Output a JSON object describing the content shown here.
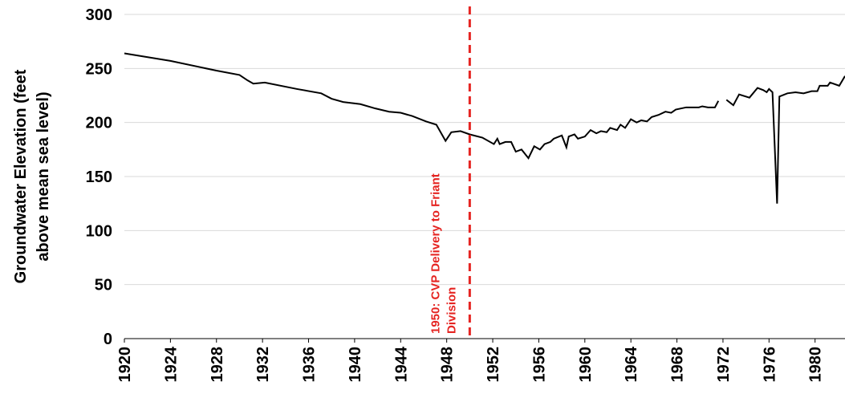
{
  "chart_data": {
    "type": "line",
    "ylabel": [
      "Groundwater Elevation (feet",
      "above mean sea level)"
    ],
    "x": [
      1920,
      1924,
      1928,
      1930,
      1930.7,
      1931.2,
      1932.2,
      1935,
      1937.1,
      1938,
      1939,
      1940.5,
      1941.8,
      1943,
      1944,
      1945,
      1946.2,
      1947.1,
      1947.9,
      1948.4,
      1949.2,
      1950,
      1951.1,
      1952.1,
      1952.4,
      1952.6,
      1953.1,
      1953.6,
      1954,
      1954.5,
      1955.1,
      1955.6,
      1956.1,
      1956.5,
      1957,
      1957.3,
      1958,
      1958.4,
      1958.6,
      1959.1,
      1959.4,
      1960,
      1960.5,
      1961,
      1961.4,
      1961.9,
      1962.2,
      1962.8,
      1963.1,
      1963.5,
      1964,
      1964.5,
      1964.9,
      1965.4,
      1965.8,
      1966.4,
      1967,
      1967.5,
      1967.9,
      1968.8,
      1969.9,
      1970.2,
      1970.7,
      1971.3,
      1971.6,
      1971.9,
      1972.3,
      1972.9,
      1973.4,
      1974.3,
      1975,
      1975.5,
      1975.8,
      1976,
      1976.3,
      1976.7,
      1976.9,
      1977.6,
      1978.3,
      1979,
      1979.7,
      1980.2,
      1980.4,
      1981.1,
      1981.3,
      1982.1,
      1982.6
    ],
    "series": [
      {
        "color": "#000000",
        "values": [
          264,
          257,
          248,
          244,
          239,
          236,
          237,
          231,
          227,
          222,
          219,
          217,
          213,
          210,
          209,
          206,
          201,
          198,
          183,
          191,
          192,
          189,
          186,
          180,
          185,
          180,
          182,
          182,
          173,
          175,
          167,
          178,
          175,
          180,
          182,
          185,
          188,
          177,
          187,
          189,
          185,
          187,
          193,
          190,
          192,
          191,
          195,
          193,
          198,
          195,
          203,
          200,
          202,
          201,
          205,
          207,
          210,
          209,
          212,
          214,
          214,
          215,
          214,
          214,
          220,
          null,
          221,
          216,
          226,
          223,
          232,
          230,
          228,
          231,
          228,
          125,
          224,
          227,
          228,
          227,
          229,
          229,
          234,
          234,
          237,
          234,
          243
        ]
      }
    ],
    "xlim": [
      1920,
      1982.6
    ],
    "ylim": [
      0,
      300
    ],
    "xticks": [
      1920,
      1924,
      1928,
      1932,
      1936,
      1940,
      1944,
      1948,
      1952,
      1956,
      1960,
      1964,
      1968,
      1972,
      1976,
      1980
    ],
    "yticks": [
      0,
      50,
      100,
      150,
      200,
      250,
      300
    ],
    "annotations": [
      {
        "x": 1950,
        "color": "#e52421",
        "lines": [
          "1950: CVP Delivery to Friant",
          "Division"
        ]
      }
    ]
  }
}
